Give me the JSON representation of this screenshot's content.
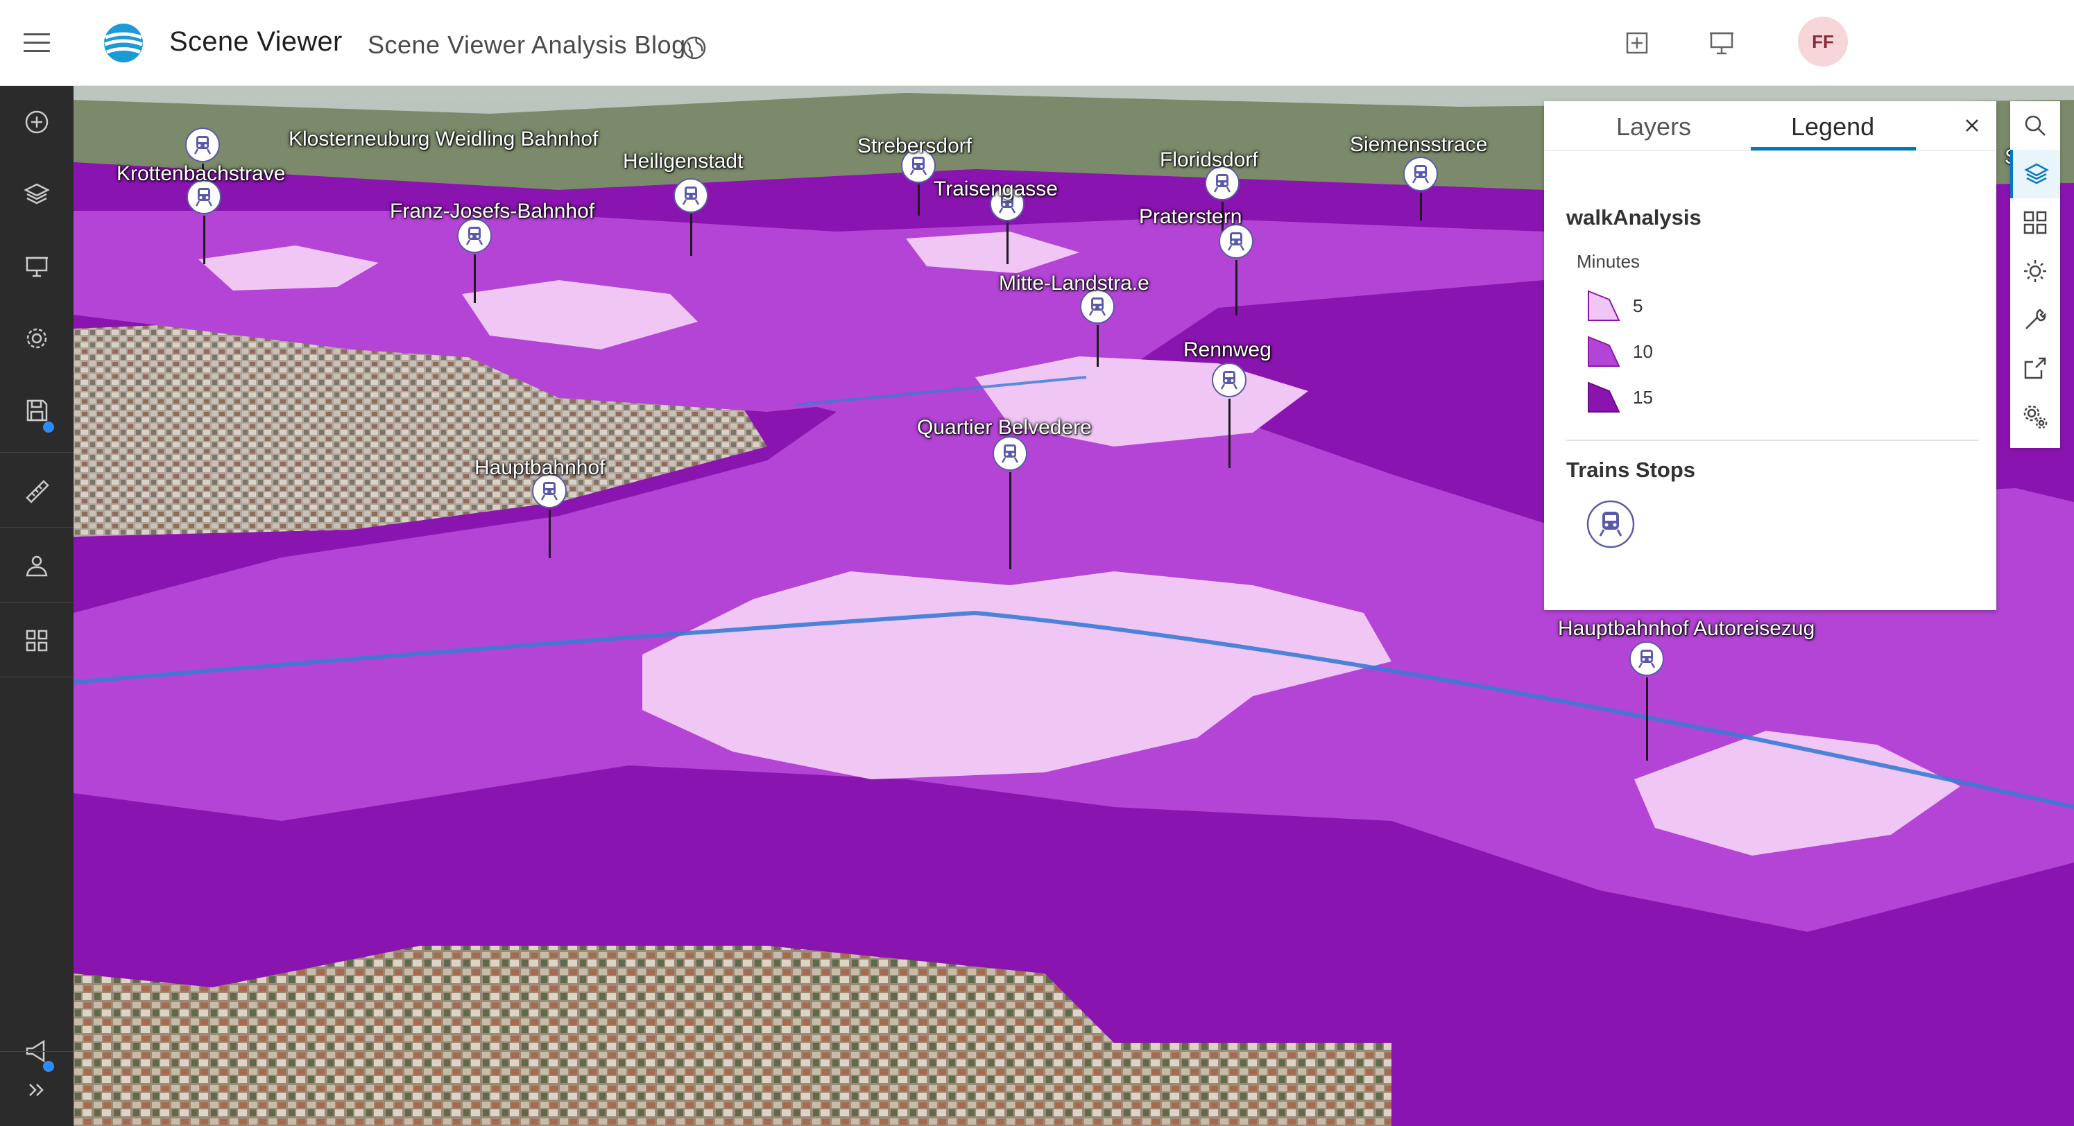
{
  "app": {
    "name": "Scene Viewer",
    "scene_title": "Scene Viewer Analysis Blog",
    "user_initials": "FF"
  },
  "colors": {
    "walk_5": "#f0c6f5",
    "walk_10": "#b344d6",
    "walk_15": "#8a14b0",
    "accent": "#0079c1"
  },
  "header": {
    "icons": [
      "menu-icon",
      "app-logo",
      "globe-icon",
      "add-slide-icon",
      "present-icon"
    ]
  },
  "left_toolbar": {
    "items": [
      "add-icon",
      "layers-icon",
      "slides-icon",
      "settings-icon",
      "save-icon",
      "measure-icon",
      "share-icon",
      "apps-icon",
      "announcement-icon",
      "expand-icon"
    ]
  },
  "right_toolbar": {
    "items": [
      "search-icon",
      "layers-icon",
      "basemap-icon",
      "daylight-icon",
      "tools-icon",
      "share-icon",
      "settings-icon"
    ]
  },
  "map": {
    "stations": [
      {
        "name": "Klosterneuburg Weidling Bahnhof"
      },
      {
        "name": "Strebersdorf"
      },
      {
        "name": "Siemensstrace"
      },
      {
        "name": "Krottenbachstrave"
      },
      {
        "name": "Heiligenstadt"
      },
      {
        "name": "Floridsdorf"
      },
      {
        "name": "Traisengasse"
      },
      {
        "name": "Franz-Josefs-Bahnhof"
      },
      {
        "name": "Praterstern"
      },
      {
        "name": "Mitte-Landstra.e"
      },
      {
        "name": "Rennweg"
      },
      {
        "name": "Quartier Belvedere"
      },
      {
        "name": "Hauptbahnhof"
      },
      {
        "name": "Hauptbahnhof Autoreisezug"
      },
      {
        "name": "S"
      }
    ]
  },
  "panel": {
    "tabs": [
      {
        "label": "Layers"
      },
      {
        "label": "Legend"
      }
    ],
    "walk_layer": {
      "title": "walkAnalysis",
      "field": "Minutes",
      "classes": [
        {
          "label": "5"
        },
        {
          "label": "10"
        },
        {
          "label": "15"
        }
      ]
    },
    "stops_layer": {
      "title": "Trains Stops"
    }
  }
}
